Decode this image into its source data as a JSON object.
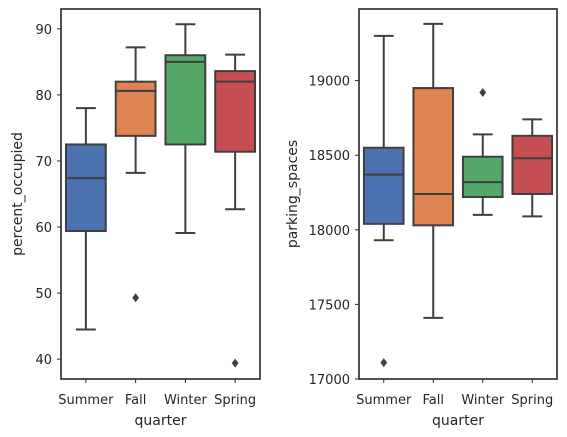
{
  "chart_data": [
    {
      "type": "box",
      "xlabel": "quarter",
      "ylabel": "percent_occupied",
      "categories": [
        "Summer",
        "Fall",
        "Winter",
        "Spring"
      ],
      "yticks": [
        40,
        50,
        60,
        70,
        80,
        90
      ],
      "ylim": [
        37,
        93
      ],
      "colors": [
        "#4c72b0",
        "#dd8452",
        "#55a868",
        "#c44e52"
      ],
      "boxes": [
        {
          "category": "Summer",
          "whisker_low": 44.5,
          "q1": 59.4,
          "median": 67.4,
          "q3": 72.5,
          "whisker_high": 78.0,
          "outliers": []
        },
        {
          "category": "Fall",
          "whisker_low": 68.2,
          "q1": 73.8,
          "median": 80.6,
          "q3": 82.0,
          "whisker_high": 87.2,
          "outliers": [
            49.3
          ]
        },
        {
          "category": "Winter",
          "whisker_low": 59.1,
          "q1": 72.5,
          "median": 85.0,
          "q3": 86.0,
          "whisker_high": 90.7,
          "outliers": []
        },
        {
          "category": "Spring",
          "whisker_low": 62.7,
          "q1": 71.4,
          "median": 82.0,
          "q3": 83.6,
          "whisker_high": 86.1,
          "outliers": [
            39.4
          ]
        }
      ]
    },
    {
      "type": "box",
      "xlabel": "quarter",
      "ylabel": "parking_spaces",
      "categories": [
        "Summer",
        "Fall",
        "Winter",
        "Spring"
      ],
      "yticks": [
        17000,
        17500,
        18000,
        18500,
        19000
      ],
      "ylim": [
        17000,
        19480
      ],
      "colors": [
        "#4c72b0",
        "#dd8452",
        "#55a868",
        "#c44e52"
      ],
      "boxes": [
        {
          "category": "Summer",
          "whisker_low": 17930,
          "q1": 18040,
          "median": 18370,
          "q3": 18550,
          "whisker_high": 19300,
          "outliers": [
            17110
          ]
        },
        {
          "category": "Fall",
          "whisker_low": 17410,
          "q1": 18030,
          "median": 18240,
          "q3": 18950,
          "whisker_high": 19380,
          "outliers": []
        },
        {
          "category": "Winter",
          "whisker_low": 18100,
          "q1": 18220,
          "median": 18320,
          "q3": 18490,
          "whisker_high": 18640,
          "outliers": [
            18920
          ]
        },
        {
          "category": "Spring",
          "whisker_low": 18090,
          "q1": 18240,
          "median": 18480,
          "q3": 18630,
          "whisker_high": 18740,
          "outliers": []
        }
      ]
    }
  ]
}
